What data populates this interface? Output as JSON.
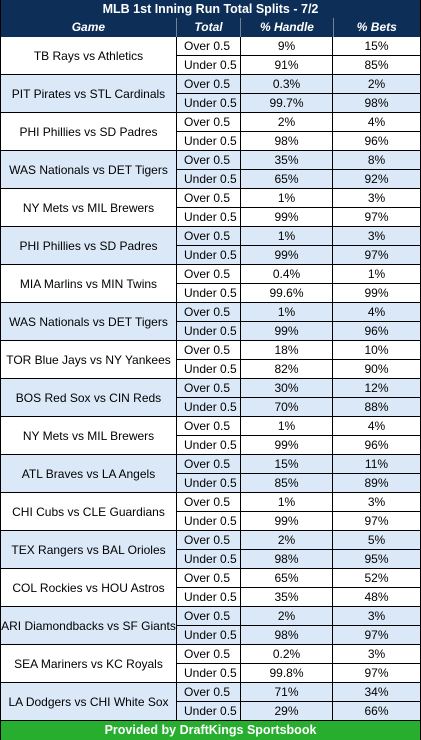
{
  "title": "MLB 1st Inning Run Total Splits - 7/2",
  "headers": {
    "game": "Game",
    "total": "Total",
    "handle": "% Handle",
    "bets": "% Bets"
  },
  "games": [
    {
      "name": "TB Rays vs Athletics",
      "rows": [
        [
          "Over 0.5",
          "9%",
          "15%"
        ],
        [
          "Under 0.5",
          "91%",
          "85%"
        ]
      ]
    },
    {
      "name": "PIT Pirates vs STL Cardinals",
      "rows": [
        [
          "Over 0.5",
          "0.3%",
          "2%"
        ],
        [
          "Under 0.5",
          "99.7%",
          "98%"
        ]
      ]
    },
    {
      "name": "PHI Phillies vs SD Padres",
      "rows": [
        [
          "Over 0.5",
          "2%",
          "4%"
        ],
        [
          "Under 0.5",
          "98%",
          "96%"
        ]
      ]
    },
    {
      "name": "WAS Nationals vs DET Tigers",
      "rows": [
        [
          "Over 0.5",
          "35%",
          "8%"
        ],
        [
          "Under 0.5",
          "65%",
          "92%"
        ]
      ]
    },
    {
      "name": "NY Mets vs MIL Brewers",
      "rows": [
        [
          "Over 0.5",
          "1%",
          "3%"
        ],
        [
          "Under 0.5",
          "99%",
          "97%"
        ]
      ]
    },
    {
      "name": "PHI Phillies vs SD Padres",
      "rows": [
        [
          "Over 0.5",
          "1%",
          "3%"
        ],
        [
          "Under 0.5",
          "99%",
          "97%"
        ]
      ]
    },
    {
      "name": "MIA Marlins vs MIN Twins",
      "rows": [
        [
          "Over 0.5",
          "0.4%",
          "1%"
        ],
        [
          "Under 0.5",
          "99.6%",
          "99%"
        ]
      ]
    },
    {
      "name": "WAS Nationals vs DET Tigers",
      "rows": [
        [
          "Over 0.5",
          "1%",
          "4%"
        ],
        [
          "Under 0.5",
          "99%",
          "96%"
        ]
      ]
    },
    {
      "name": "TOR Blue Jays vs NY Yankees",
      "rows": [
        [
          "Over 0.5",
          "18%",
          "10%"
        ],
        [
          "Under 0.5",
          "82%",
          "90%"
        ]
      ]
    },
    {
      "name": "BOS Red Sox vs CIN Reds",
      "rows": [
        [
          "Over 0.5",
          "30%",
          "12%"
        ],
        [
          "Under 0.5",
          "70%",
          "88%"
        ]
      ]
    },
    {
      "name": "NY Mets vs MIL Brewers",
      "rows": [
        [
          "Over 0.5",
          "1%",
          "4%"
        ],
        [
          "Under 0.5",
          "99%",
          "96%"
        ]
      ]
    },
    {
      "name": "ATL Braves vs LA Angels",
      "rows": [
        [
          "Over 0.5",
          "15%",
          "11%"
        ],
        [
          "Under 0.5",
          "85%",
          "89%"
        ]
      ]
    },
    {
      "name": "CHI Cubs vs CLE Guardians",
      "rows": [
        [
          "Over 0.5",
          "1%",
          "3%"
        ],
        [
          "Under 0.5",
          "99%",
          "97%"
        ]
      ]
    },
    {
      "name": "TEX Rangers vs BAL Orioles",
      "rows": [
        [
          "Over 0.5",
          "2%",
          "5%"
        ],
        [
          "Under 0.5",
          "98%",
          "95%"
        ]
      ]
    },
    {
      "name": "COL Rockies vs HOU Astros",
      "rows": [
        [
          "Over 0.5",
          "65%",
          "52%"
        ],
        [
          "Under 0.5",
          "35%",
          "48%"
        ]
      ]
    },
    {
      "name": "ARI Diamondbacks vs SF Giants",
      "rows": [
        [
          "Over 0.5",
          "2%",
          "3%"
        ],
        [
          "Under 0.5",
          "98%",
          "97%"
        ]
      ]
    },
    {
      "name": "SEA Mariners vs KC Royals",
      "rows": [
        [
          "Over 0.5",
          "0.2%",
          "3%"
        ],
        [
          "Under 0.5",
          "99.8%",
          "97%"
        ]
      ]
    },
    {
      "name": "LA Dodgers vs CHI White Sox",
      "rows": [
        [
          "Over 0.5",
          "71%",
          "34%"
        ],
        [
          "Under 0.5",
          "29%",
          "66%"
        ]
      ]
    }
  ],
  "footer": "Provided by DraftKings Sportsbook",
  "colors": {
    "header_bg": "#0d2e57",
    "shade": "#dbe8f7",
    "footer_bg": "#27ae2f"
  }
}
